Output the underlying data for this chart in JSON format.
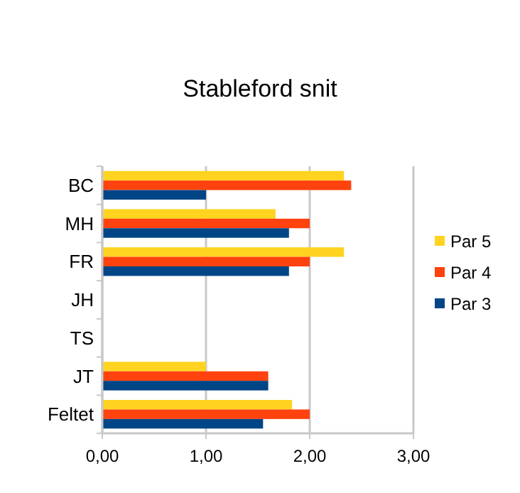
{
  "chart_data": {
    "type": "bar",
    "orientation": "horizontal",
    "title": "Stableford snit",
    "categories": [
      "BC",
      "MH",
      "FR",
      "JH",
      "TS",
      "JT",
      "Feltet"
    ],
    "series": [
      {
        "name": "Par 5",
        "color": "#ffd320",
        "values": [
          2.33,
          1.67,
          2.33,
          null,
          null,
          1.0,
          1.83
        ]
      },
      {
        "name": "Par 4",
        "color": "#ff420e",
        "values": [
          2.4,
          2.0,
          2.0,
          null,
          null,
          1.6,
          2.0
        ]
      },
      {
        "name": "Par 3",
        "color": "#004586",
        "values": [
          1.0,
          1.8,
          1.8,
          null,
          null,
          1.6,
          1.55
        ]
      }
    ],
    "xlim": [
      0,
      3
    ],
    "xticks": [
      {
        "value": 0,
        "label": "0,00"
      },
      {
        "value": 1,
        "label": "1,00"
      },
      {
        "value": 2,
        "label": "2,00"
      },
      {
        "value": 3,
        "label": "3,00"
      }
    ],
    "grid": "x",
    "legend": "right"
  }
}
